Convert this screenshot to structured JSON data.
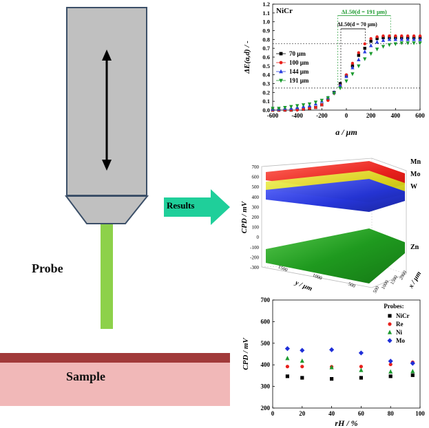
{
  "schematic": {
    "probe_label": "Probe",
    "sample_label": "Sample",
    "results_label": "Results",
    "colors": {
      "probe_body": "#c0c0c0",
      "probe_outline": "#3b4f68",
      "probe_tip": "#8dd14a",
      "sample_top": "#a13a3a",
      "sample_body": "#f1b8b8",
      "arrow": "#1fcf9a"
    }
  },
  "chart_data": [
    {
      "type": "line",
      "panel": "energy-profile",
      "annotation_material": "NiCr",
      "xlabel": "a / µm",
      "ylabel": "ΔE(a,d) / -",
      "xlim": [
        -600,
        600
      ],
      "ylim": [
        0.0,
        1.2
      ],
      "xticks": [
        -600,
        -400,
        -200,
        0,
        200,
        400,
        600
      ],
      "yticks": [
        0.0,
        0.1,
        0.2,
        0.3,
        0.4,
        0.5,
        0.6,
        0.7,
        0.8,
        0.9,
        1.0,
        1.1,
        1.2
      ],
      "x": [
        -600,
        -550,
        -500,
        -450,
        -400,
        -350,
        -300,
        -250,
        -200,
        -150,
        -100,
        -50,
        0,
        50,
        100,
        150,
        200,
        250,
        300,
        350,
        400,
        450,
        500,
        550,
        600
      ],
      "legend_position": "left",
      "series": [
        {
          "name": "70 µm",
          "color": "#000000",
          "marker": "square",
          "values": [
            0.0,
            0.0,
            0.0,
            0.0,
            0.01,
            0.01,
            0.02,
            0.03,
            0.06,
            0.12,
            0.2,
            0.3,
            0.39,
            0.5,
            0.62,
            0.7,
            0.78,
            0.81,
            0.82,
            0.82,
            0.82,
            0.82,
            0.82,
            0.82,
            0.82
          ]
        },
        {
          "name": "100 µm",
          "color": "#e8211d",
          "marker": "circle",
          "values": [
            0.0,
            0.0,
            0.0,
            0.0,
            0.0,
            0.01,
            0.02,
            0.03,
            0.06,
            0.11,
            0.19,
            0.28,
            0.4,
            0.53,
            0.65,
            0.75,
            0.81,
            0.83,
            0.84,
            0.84,
            0.84,
            0.84,
            0.84,
            0.84,
            0.84
          ]
        },
        {
          "name": "144 µm",
          "color": "#2a3fe0",
          "marker": "triangle-up",
          "values": [
            0.01,
            0.01,
            0.02,
            0.02,
            0.03,
            0.04,
            0.05,
            0.07,
            0.1,
            0.14,
            0.2,
            0.28,
            0.38,
            0.48,
            0.57,
            0.66,
            0.73,
            0.77,
            0.79,
            0.8,
            0.8,
            0.8,
            0.8,
            0.8,
            0.8
          ]
        },
        {
          "name": "191 µm",
          "color": "#1b9a2e",
          "marker": "triangle-down",
          "values": [
            0.02,
            0.02,
            0.03,
            0.04,
            0.05,
            0.06,
            0.07,
            0.09,
            0.11,
            0.14,
            0.19,
            0.25,
            0.33,
            0.41,
            0.5,
            0.58,
            0.64,
            0.69,
            0.72,
            0.74,
            0.75,
            0.76,
            0.76,
            0.76,
            0.76
          ]
        }
      ],
      "annotations": [
        {
          "text": "ΔL50(d = 191 µm)",
          "color": "#1b9a2e",
          "x_from": -70,
          "x_to": 360
        },
        {
          "text": "ΔL50(d = 70 µm)",
          "color": "#000000",
          "x_from": -45,
          "x_to": 155
        }
      ],
      "reference_levels": [
        0.25,
        0.75
      ]
    },
    {
      "type": "surface3d",
      "panel": "cpd-surfaces",
      "zlabel": "CPD / mV",
      "ylabel": "y / µm",
      "xlabel": "x / µm",
      "zticks": [
        700,
        600,
        500,
        400,
        300,
        200,
        100,
        0,
        -100,
        -200,
        -300
      ],
      "yticks": [
        "1500",
        "1000",
        "500"
      ],
      "xticks": [
        "500",
        "1000",
        "1500",
        "2000"
      ],
      "surfaces": [
        {
          "name": "Mn",
          "color": "#e8211d",
          "mean_mV": 610
        },
        {
          "name": "Mo",
          "color": "#e0e020",
          "mean_mV": 510
        },
        {
          "name": "W",
          "color": "#1f2fd8",
          "mean_mV": 430
        },
        {
          "name": "Zn",
          "color": "#1f9a1f",
          "mean_mV": -200
        }
      ]
    },
    {
      "type": "scatter",
      "panel": "cpd-vs-rh",
      "xlabel": "rH / %",
      "ylabel": "CPD / mV",
      "xlim": [
        0,
        100
      ],
      "ylim": [
        200,
        700
      ],
      "xticks": [
        0,
        20,
        40,
        60,
        80,
        100
      ],
      "yticks": [
        200,
        300,
        400,
        500,
        600,
        700
      ],
      "legend_title": "Probes:",
      "legend_position": "top-right",
      "x": [
        10,
        20,
        40,
        60,
        80,
        95
      ],
      "series": [
        {
          "name": "NiCr",
          "color": "#000000",
          "marker": "square",
          "values": [
            347,
            340,
            335,
            340,
            347,
            352
          ]
        },
        {
          "name": "Re",
          "color": "#e8211d",
          "marker": "circle",
          "values": [
            392,
            392,
            391,
            392,
            402,
            412
          ]
        },
        {
          "name": "Ni",
          "color": "#1b9a2e",
          "marker": "triangle-up",
          "values": [
            430,
            418,
            388,
            375,
            368,
            370
          ]
        },
        {
          "name": "Mo",
          "color": "#1f2fd8",
          "marker": "diamond",
          "values": [
            475,
            467,
            470,
            455,
            417,
            407
          ]
        }
      ]
    }
  ]
}
